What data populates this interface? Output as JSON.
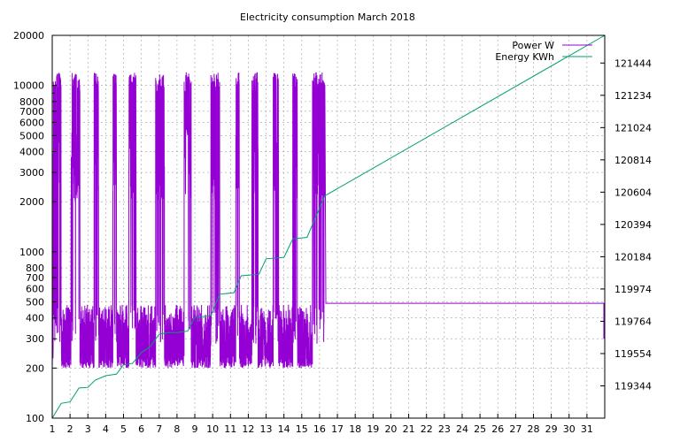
{
  "chart_data": {
    "type": "line",
    "title": "Electricity consumption March 2018",
    "grid": true,
    "legend_position": "top-right",
    "x_axis": {
      "range": [
        1,
        32
      ],
      "ticks": [
        1,
        2,
        3,
        4,
        5,
        6,
        7,
        8,
        9,
        10,
        11,
        12,
        13,
        14,
        15,
        16,
        17,
        18,
        19,
        20,
        21,
        22,
        23,
        24,
        25,
        26,
        27,
        28,
        29,
        30,
        31
      ]
    },
    "y_left": {
      "scale": "log",
      "range": [
        100,
        20000
      ],
      "ticks": [
        100,
        200,
        300,
        400,
        500,
        600,
        700,
        800,
        1000,
        2000,
        3000,
        4000,
        5000,
        6000,
        7000,
        8000,
        10000,
        20000
      ],
      "tick_labels": [
        "100",
        "200",
        "300",
        "400",
        "500",
        "600",
        "700",
        "800",
        "1000",
        "2000",
        "3000",
        "4000",
        "5000",
        "6000",
        "7000",
        "8000",
        "10000",
        "20000"
      ]
    },
    "y_right": {
      "scale": "linear",
      "range": [
        119134,
        121624
      ],
      "ticks": [
        119344,
        119554,
        119764,
        119974,
        120184,
        120394,
        120604,
        120814,
        121024,
        121234,
        121444
      ]
    },
    "series": [
      {
        "name": "Power W",
        "axis": "left",
        "color": "#9400d3",
        "base_low": 200,
        "base_high": 480,
        "peak_low": 2000,
        "peak_high": 12000,
        "active_days": [
          1,
          16.3
        ],
        "busy_windows": [
          [
            1.05,
            1.5
          ],
          [
            2.05,
            2.55
          ],
          [
            3.35,
            3.6
          ],
          [
            4.4,
            4.6
          ],
          [
            5.3,
            5.7
          ],
          [
            6.8,
            7.3
          ],
          [
            8.4,
            8.8
          ],
          [
            9.9,
            10.4
          ],
          [
            11.3,
            11.5
          ],
          [
            12.2,
            12.55
          ],
          [
            13.4,
            13.7
          ],
          [
            14.5,
            14.75
          ],
          [
            15.6,
            16.3
          ]
        ],
        "flat_from": 16.35,
        "flat_value": 490,
        "end_drop": {
          "x": 31.95,
          "value": 300
        }
      },
      {
        "name": "Energy KWh",
        "axis": "right",
        "color": "#009e73",
        "points": [
          [
            1.0,
            119134
          ],
          [
            1.5,
            119230
          ],
          [
            2.0,
            119240
          ],
          [
            2.5,
            119330
          ],
          [
            3.0,
            119334
          ],
          [
            3.4,
            119380
          ],
          [
            4.0,
            119410
          ],
          [
            4.6,
            119420
          ],
          [
            5.0,
            119480
          ],
          [
            5.5,
            119490
          ],
          [
            6.0,
            119560
          ],
          [
            6.5,
            119600
          ],
          [
            7.0,
            119680
          ],
          [
            7.5,
            119690
          ],
          [
            8.0,
            119690
          ],
          [
            8.6,
            119700
          ],
          [
            9.0,
            119790
          ],
          [
            9.9,
            119800
          ],
          [
            10.4,
            119940
          ],
          [
            11.2,
            119950
          ],
          [
            11.6,
            120060
          ],
          [
            12.6,
            120070
          ],
          [
            13.0,
            120170
          ],
          [
            14.0,
            120180
          ],
          [
            14.5,
            120300
          ],
          [
            15.3,
            120310
          ],
          [
            15.7,
            120420
          ],
          [
            16.3,
            120580
          ],
          [
            32.0,
            121624
          ]
        ]
      }
    ]
  }
}
